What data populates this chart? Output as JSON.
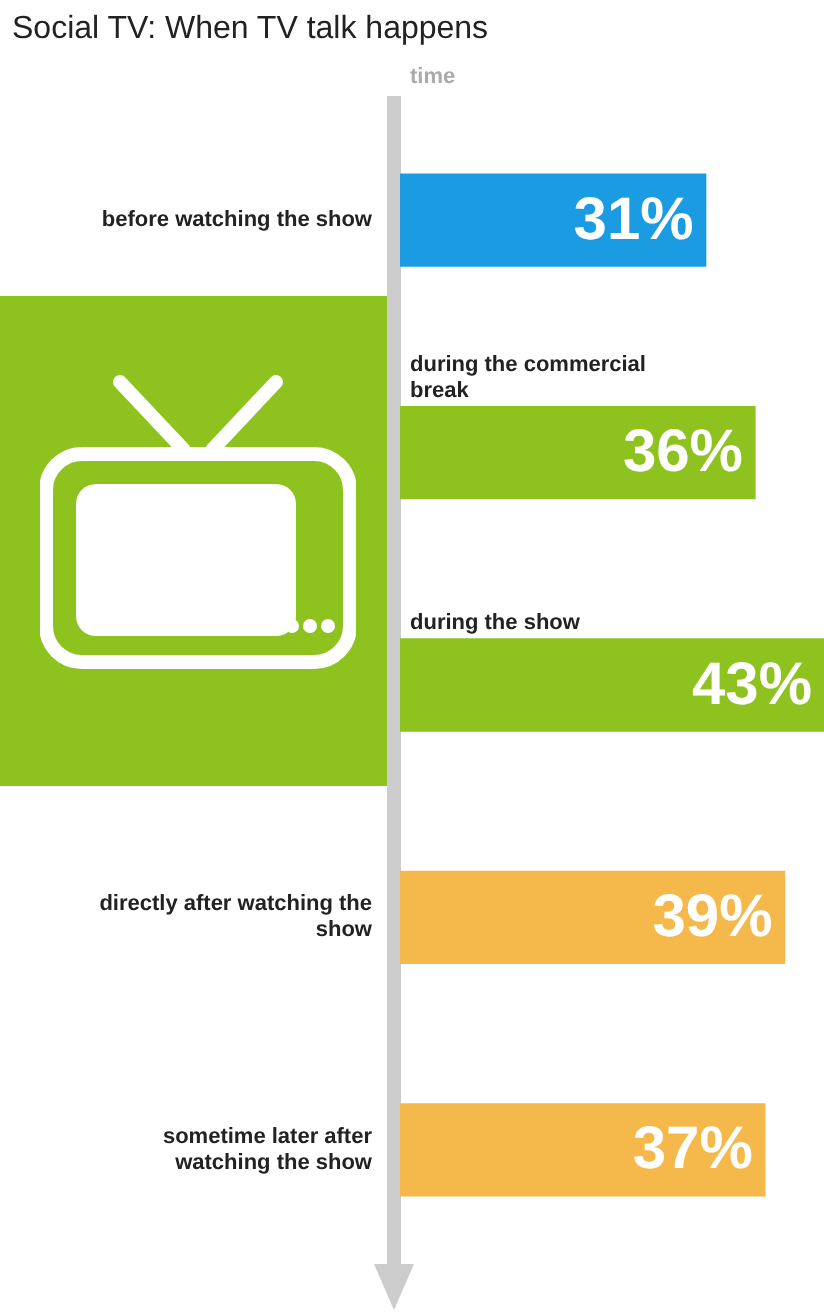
{
  "chart_data": {
    "type": "bar",
    "orientation": "horizontal",
    "title": "Social TV: When TV talk happens",
    "ylabel": "time",
    "categories": [
      "before watching the show",
      "during the commercial break",
      "during the show",
      "directly after watching the show",
      "sometime later after watching the show"
    ],
    "values": [
      31,
      36,
      43,
      39,
      37
    ],
    "colors": [
      "#1a9be2",
      "#8ec21f",
      "#8ec21f",
      "#f5b84a",
      "#f5b84a"
    ],
    "value_labels": [
      "31%",
      "36%",
      "43%",
      "39%",
      "37%"
    ],
    "xlim": [
      0,
      43
    ],
    "legend": false
  }
}
